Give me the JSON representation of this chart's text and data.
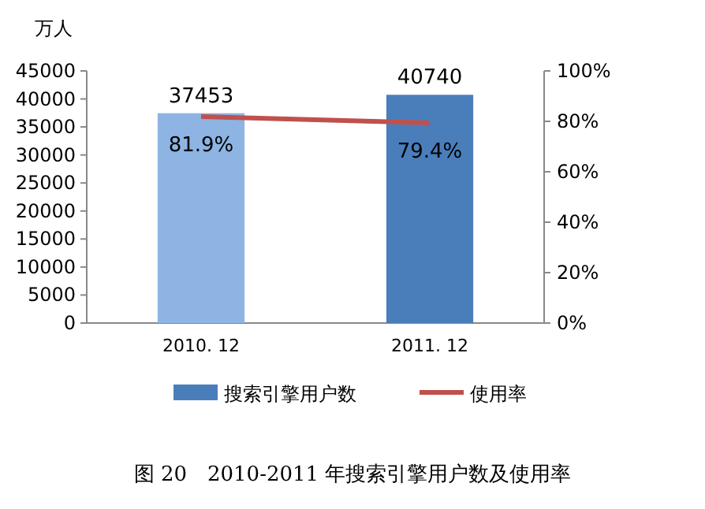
{
  "chart_data": {
    "type": "bar",
    "ylabel": "万人",
    "categories": [
      "2010. 12",
      "2011. 12"
    ],
    "series": [
      {
        "name": "搜索引擎用户数",
        "color": "#4a7ebb",
        "colors": [
          "#8db4e2",
          "#4a7ebb"
        ],
        "values": [
          37453,
          40740
        ],
        "value_labels": [
          "37453",
          "40740"
        ]
      },
      {
        "name": "使用率",
        "type": "line",
        "axis": "y2",
        "color": "#c0504d",
        "values": [
          81.9,
          79.4
        ],
        "value_labels": [
          "81.9%",
          "79.4%"
        ]
      }
    ],
    "ylim": [
      0,
      45000
    ],
    "yticks": [
      0,
      5000,
      10000,
      15000,
      20000,
      25000,
      30000,
      35000,
      40000,
      45000
    ],
    "y2lim": [
      0,
      100
    ],
    "y2ticks": [
      {
        "value": 0,
        "label": "0%"
      },
      {
        "value": 20,
        "label": "20%"
      },
      {
        "value": 40,
        "label": "40%"
      },
      {
        "value": 60,
        "label": "60%"
      },
      {
        "value": 80,
        "label": "80%"
      },
      {
        "value": 100,
        "label": "100%"
      }
    ],
    "grid": false,
    "legend": "bottom",
    "marker": "none",
    "annotations": [
      "图 20　2010-2011 年搜索引擎用户数及使用率"
    ]
  }
}
